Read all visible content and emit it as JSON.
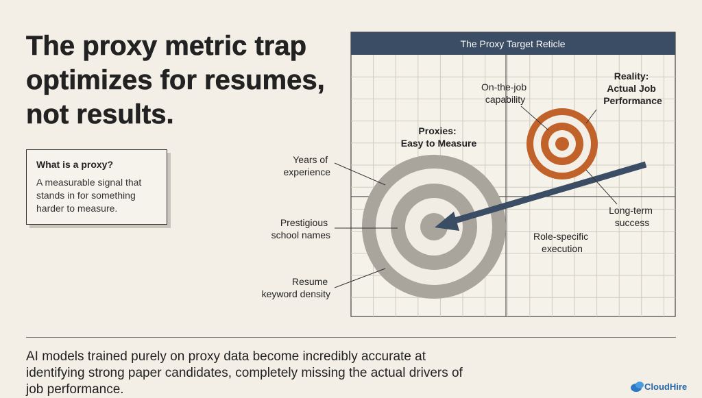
{
  "title": "The proxy metric trap optimizes for resumes, not results.",
  "callout": {
    "heading": "What is a proxy?",
    "body": "A measurable signal that stands in for something harder to measure."
  },
  "diagram": {
    "title": "The Proxy Target Reticle",
    "proxies": {
      "heading": [
        "Proxies:",
        "Easy to Measure"
      ],
      "labels": [
        [
          "Years of",
          "experience"
        ],
        [
          "Prestigious",
          "school names"
        ],
        [
          "Resume",
          "keyword density"
        ]
      ]
    },
    "reality": {
      "heading": [
        "Reality:",
        "Actual Job",
        "Performance"
      ],
      "labels": [
        [
          "On-the-job",
          "capability"
        ],
        [
          "Long-term",
          "success"
        ],
        [
          "Role-specific",
          "execution"
        ]
      ]
    }
  },
  "footer": "AI models trained purely on proxy data become incredibly accurate at identifying strong paper candidates, completely missing the actual drivers of job performance.",
  "brand": "CloudHire"
}
